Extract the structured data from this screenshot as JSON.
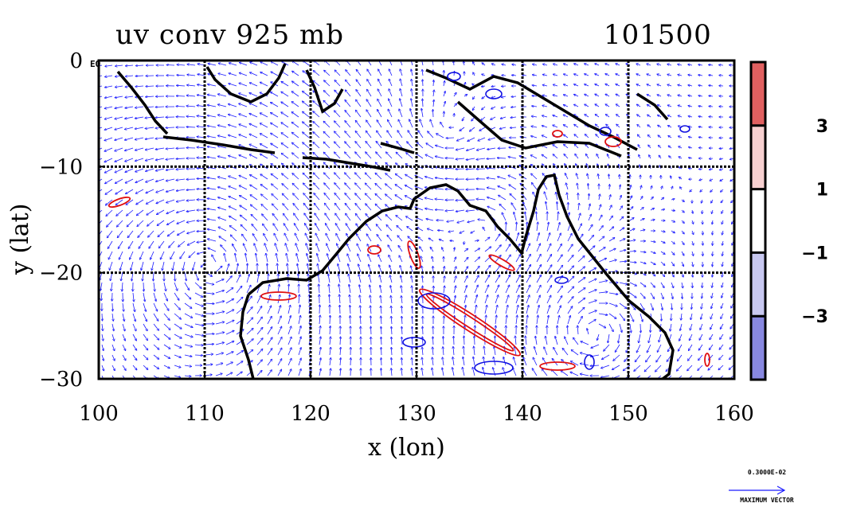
{
  "title": {
    "left": "uv conv 925 mb",
    "right": "101500"
  },
  "axes": {
    "xlabel": "x (lon)",
    "ylabel": "y (lat)",
    "xticks": [
      "100",
      "110",
      "120",
      "130",
      "140",
      "150",
      "160"
    ],
    "yticks": [
      "0",
      "−10",
      "−20",
      "−30"
    ],
    "xlim": [
      100,
      160
    ],
    "ylim": [
      -30,
      0
    ],
    "grid": true,
    "corner_label": "EQ"
  },
  "colorbar": {
    "levels": [
      "3",
      "1",
      "−1",
      "−3"
    ],
    "bands": [
      "#e06060",
      "#f7d0d0",
      "#ffffff",
      "#ffffff",
      "#c8c8f0",
      "#8888e0"
    ]
  },
  "legend": {
    "max_vector_value": "0.3000E-02",
    "max_vector_label": "MAXIMUM VECTOR"
  },
  "colors": {
    "vector": "#1a1aff",
    "positive_contour": "#e01010",
    "negative_contour": "#1010e0",
    "coast": "#000000"
  }
}
